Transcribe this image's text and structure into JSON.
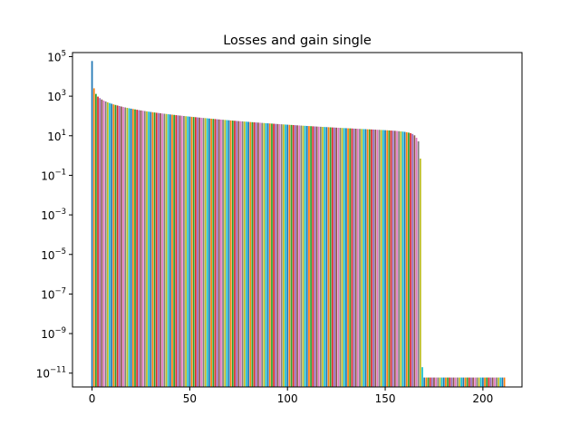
{
  "chart_data": {
    "type": "bar",
    "title": "Losses and gain single",
    "xlabel": "",
    "ylabel": "",
    "yscale": "log",
    "xlim": [
      -10,
      220
    ],
    "ylim": [
      2e-12,
      160000.0
    ],
    "x_ticks": [
      0,
      50,
      100,
      150,
      200
    ],
    "y_ticks": [
      {
        "exp": 5,
        "base": "10",
        "power": "5"
      },
      {
        "exp": 3,
        "base": "10",
        "power": "3"
      },
      {
        "exp": 1,
        "base": "10",
        "power": "1"
      },
      {
        "exp": -1,
        "base": "10",
        "power": "−1"
      },
      {
        "exp": -3,
        "base": "10",
        "power": "−3"
      },
      {
        "exp": -5,
        "base": "10",
        "power": "−5"
      },
      {
        "exp": -7,
        "base": "10",
        "power": "−7"
      },
      {
        "exp": -9,
        "base": "10",
        "power": "−9"
      },
      {
        "exp": -11,
        "base": "10",
        "power": "−11"
      }
    ],
    "x_start": 0,
    "x_step": 1,
    "values": [
      60000,
      2500,
      1300,
      950,
      800,
      680,
      600,
      540,
      490,
      450,
      415,
      385,
      360,
      338,
      318,
      300,
      284,
      270,
      257,
      245,
      234,
      224,
      215,
      206,
      198,
      191,
      184,
      177,
      171,
      165,
      160,
      155,
      150,
      145,
      141,
      137,
      133,
      129,
      126,
      122,
      119,
      116,
      113,
      110,
      107,
      104.5,
      102,
      99.5,
      97,
      94.8,
      92.6,
      90.5,
      88.5,
      86.5,
      84.6,
      82.7,
      80.9,
      79.2,
      77.5,
      75.8,
      74.2,
      72.7,
      71.2,
      69.7,
      68.3,
      66.9,
      65.6,
      64.3,
      63,
      61.8,
      60.6,
      59.4,
      58.3,
      57.2,
      56.1,
      55.1,
      54.1,
      53.1,
      52.1,
      51.2,
      50.3,
      49.4,
      48.5,
      47.7,
      46.9,
      46.1,
      45.3,
      44.5,
      43.8,
      43.1,
      42.4,
      41.7,
      41,
      40.4,
      39.7,
      39.1,
      38.5,
      37.9,
      37.3,
      36.7,
      36.2,
      35.6,
      35.1,
      34.6,
      34.1,
      33.6,
      33.1,
      32.6,
      32.1,
      31.7,
      31.2,
      30.8,
      30.4,
      30,
      29.6,
      29.2,
      28.8,
      28.4,
      28,
      27.7,
      27.3,
      27,
      26.6,
      26.3,
      26,
      25.6,
      25.3,
      25,
      24.7,
      24.4,
      24.1,
      23.8,
      23.6,
      23.3,
      23,
      22.7,
      22.5,
      22.2,
      22,
      21.7,
      21.5,
      21.2,
      21,
      20.8,
      20.6,
      20.3,
      20.1,
      19.9,
      19.6,
      19.4,
      19.1,
      18.9,
      18.6,
      18.3,
      18,
      17.7,
      17.4,
      17,
      16.6,
      16.2,
      15.7,
      15.1,
      14.4,
      13.5,
      12.3,
      10.5,
      7.9,
      5.2,
      0.7,
      2e-11,
      6e-12,
      6e-12,
      6e-12,
      6e-12,
      6e-12,
      6e-12,
      6e-12,
      6e-12,
      6e-12,
      6e-12,
      6e-12,
      6e-12,
      6e-12,
      6e-12,
      6e-12,
      6e-12,
      6e-12,
      6e-12,
      6e-12,
      6e-12,
      6e-12,
      6e-12,
      6e-12,
      6e-12,
      6e-12,
      6e-12,
      6e-12,
      6e-12,
      6e-12,
      6e-12,
      6e-12,
      6e-12,
      6e-12,
      6e-12,
      6e-12,
      6e-12,
      6e-12,
      6e-12,
      6e-12,
      6e-12,
      6e-12,
      6e-12
    ],
    "colors": [
      "#1f77b4",
      "#ff7f0e",
      "#2ca02c",
      "#d62728",
      "#9467bd",
      "#8c564b",
      "#e377c2",
      "#7f7f7f",
      "#bcbd22",
      "#17becf"
    ],
    "grid": false,
    "legend": "none"
  }
}
